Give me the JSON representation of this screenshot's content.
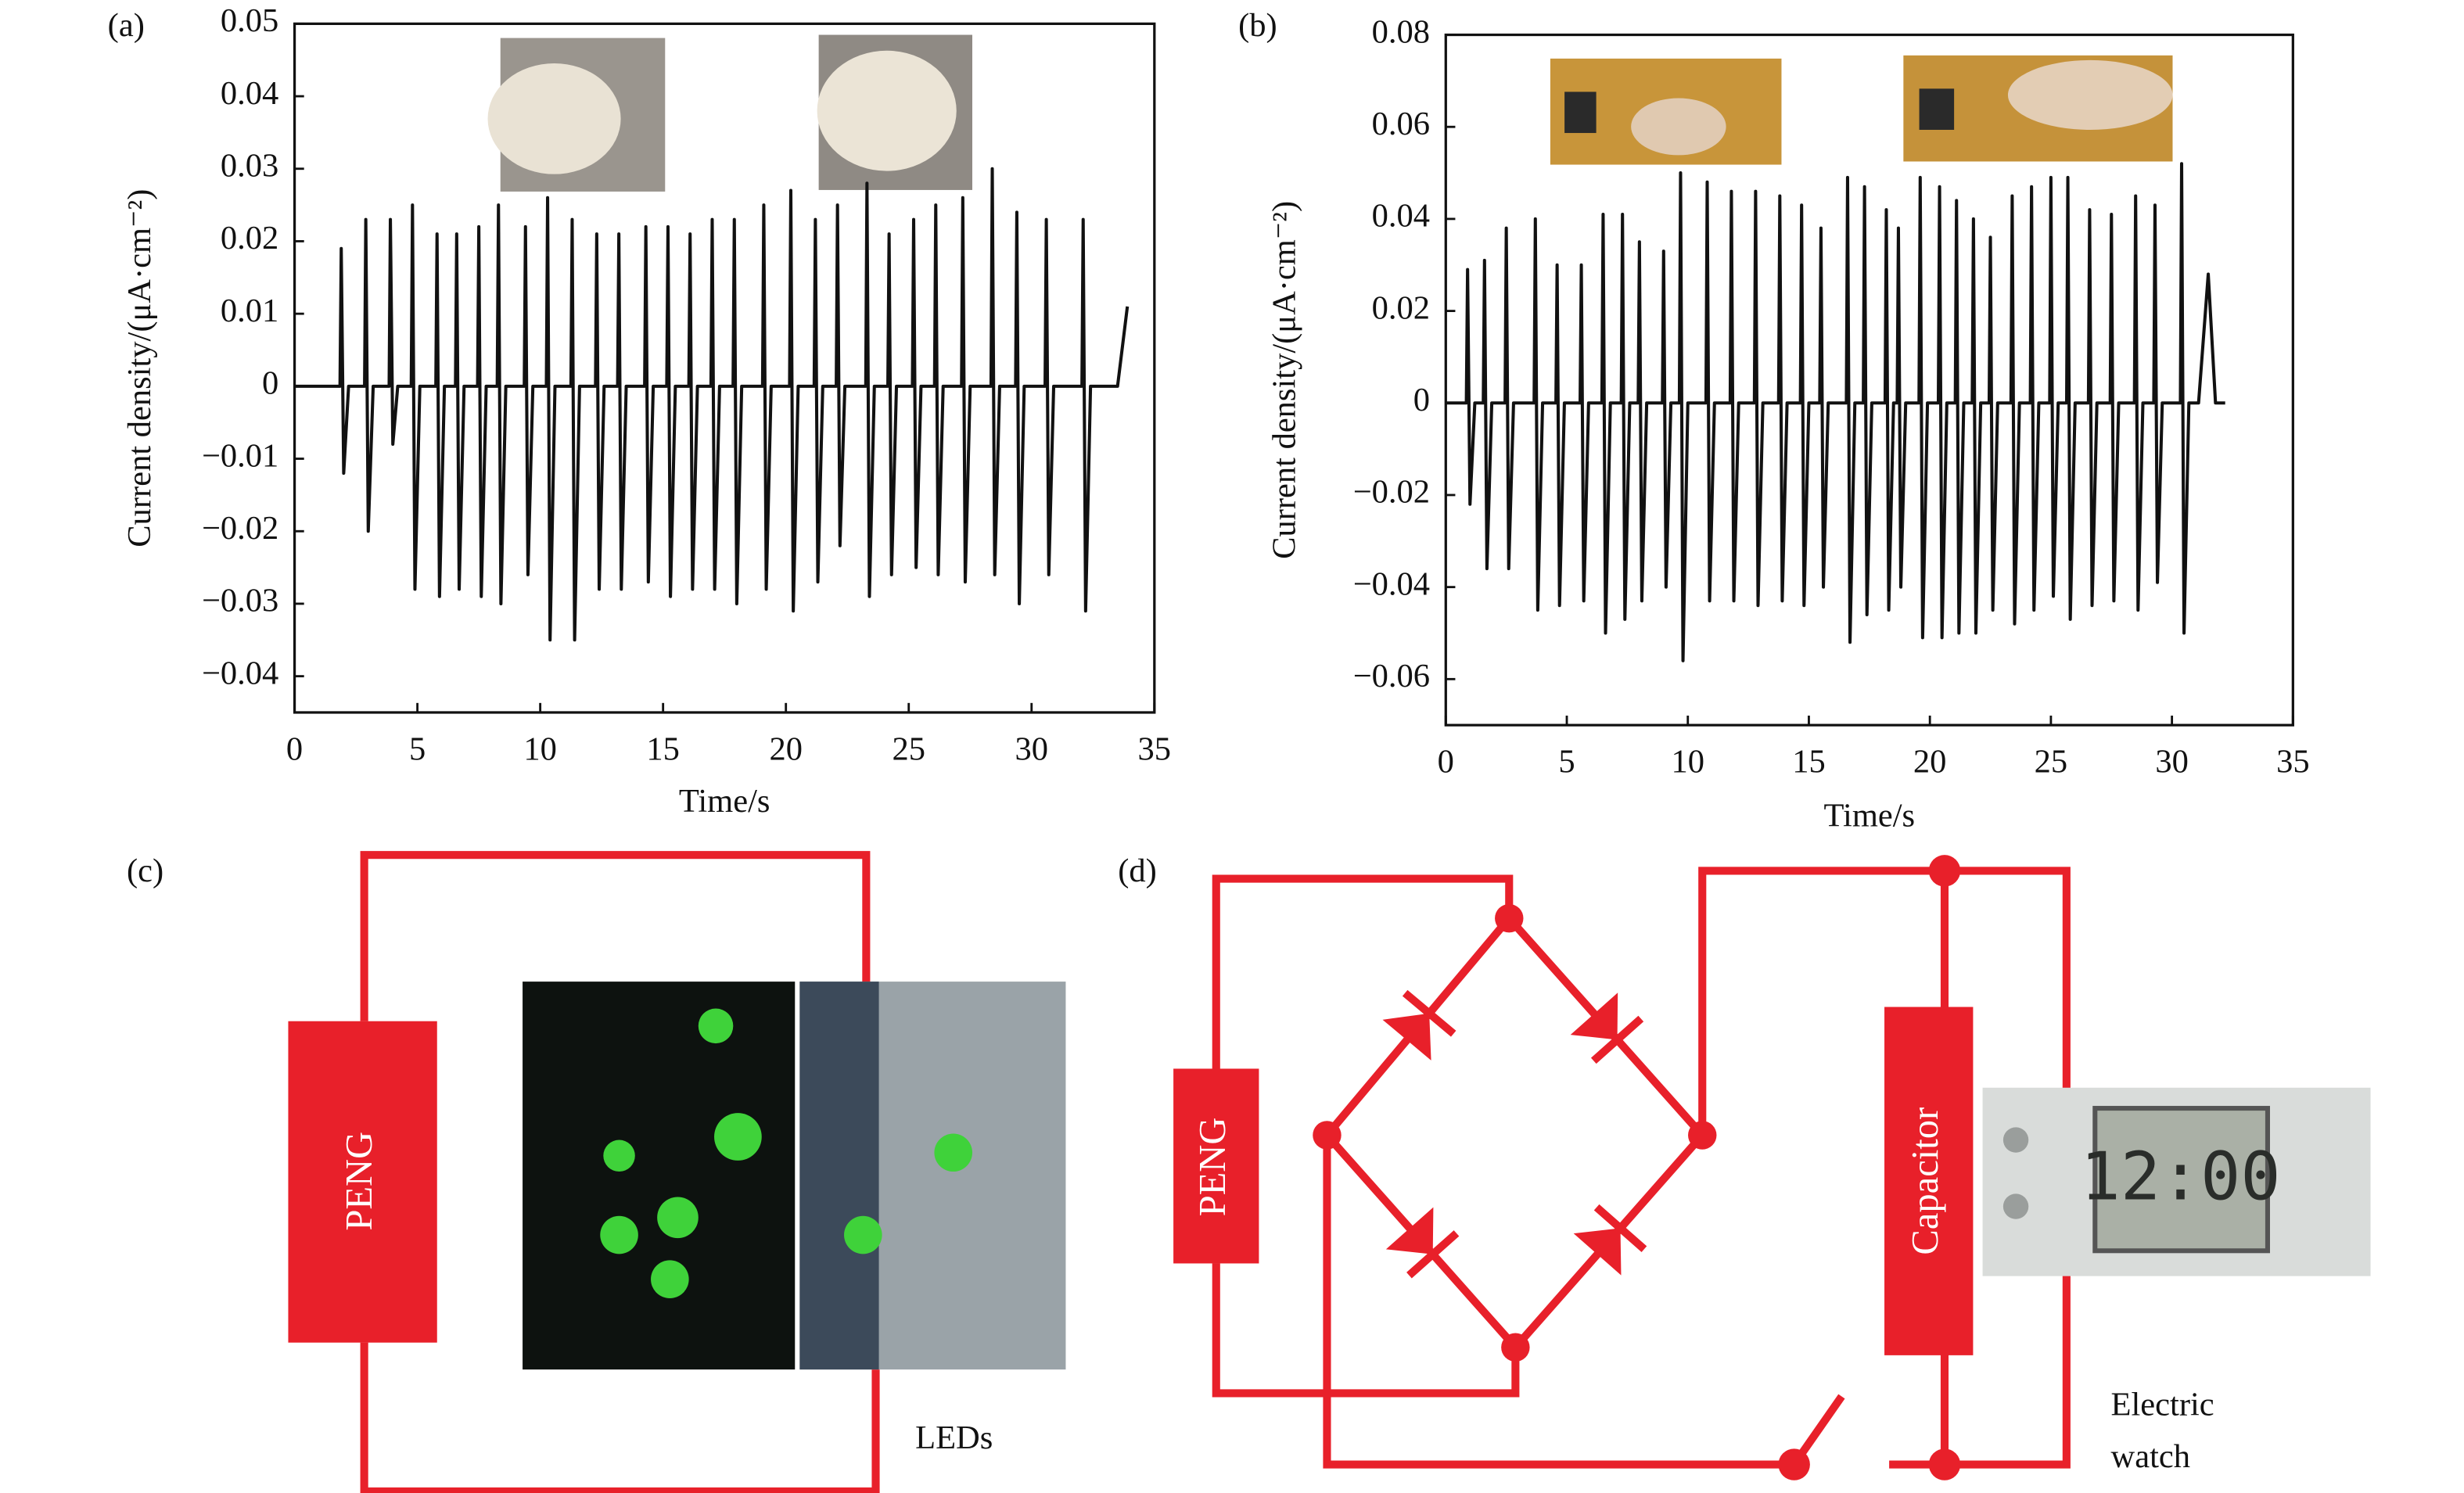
{
  "chart_data": [
    {
      "type": "line",
      "panel_label": "(a)",
      "xlabel": "Time/s",
      "ylabel": "Current density/(μA·cm⁻²)",
      "color": "#111111",
      "xlim": [
        0,
        35
      ],
      "xticks": [
        0,
        5,
        10,
        15,
        20,
        25,
        30,
        35
      ],
      "ylim": [
        -0.045,
        0.05
      ],
      "yticks": [
        0.05,
        0.04,
        0.03,
        0.02,
        0.01,
        0,
        {
          "value": -0.01,
          "label": "−0.01"
        },
        {
          "value": -0.02,
          "label": "−0.02"
        },
        {
          "value": -0.03,
          "label": "−0.03"
        },
        {
          "value": -0.04,
          "label": "−0.04"
        }
      ],
      "x": [
        0,
        1.85,
        1.9,
        2.0,
        2.2,
        2.85,
        2.9,
        3.0,
        3.2,
        3.85,
        3.9,
        4.0,
        4.2,
        4.75,
        4.8,
        4.9,
        5.1,
        5.75,
        5.8,
        5.9,
        6.1,
        6.55,
        6.6,
        6.7,
        6.9,
        7.45,
        7.5,
        7.6,
        7.8,
        8.25,
        8.3,
        8.4,
        8.6,
        9.35,
        9.4,
        9.5,
        9.7,
        10.25,
        10.3,
        10.4,
        10.6,
        11.25,
        11.3,
        11.4,
        11.6,
        12.25,
        12.3,
        12.4,
        12.6,
        13.15,
        13.2,
        13.3,
        13.5,
        14.25,
        14.3,
        14.4,
        14.6,
        15.15,
        15.2,
        15.3,
        15.5,
        16.05,
        16.1,
        16.2,
        16.4,
        16.95,
        17.0,
        17.1,
        17.3,
        17.85,
        17.9,
        18.0,
        18.2,
        19.05,
        19.1,
        19.2,
        19.4,
        20.15,
        20.2,
        20.3,
        20.5,
        21.15,
        21.2,
        21.3,
        21.5,
        22.05,
        22.1,
        22.2,
        22.4,
        23.25,
        23.3,
        23.4,
        23.6,
        24.15,
        24.2,
        24.3,
        24.5,
        25.15,
        25.2,
        25.3,
        25.5,
        26.05,
        26.1,
        26.2,
        26.4,
        27.15,
        27.2,
        27.3,
        27.5,
        28.35,
        28.4,
        28.5,
        28.7,
        29.35,
        29.4,
        29.5,
        29.7,
        30.55,
        30.6,
        30.7,
        30.9,
        32.05,
        32.1,
        32.2,
        32.4,
        33.5,
        33.9
      ],
      "values": [
        0,
        0,
        0.019,
        -0.012,
        0,
        0,
        0.023,
        -0.02,
        0,
        0,
        0.023,
        -0.008,
        0,
        0,
        0.025,
        -0.028,
        0,
        0,
        0.021,
        -0.029,
        0,
        0,
        0.021,
        -0.028,
        0,
        0,
        0.022,
        -0.029,
        0,
        0,
        0.025,
        -0.03,
        0,
        0,
        0.022,
        -0.026,
        0,
        0,
        0.026,
        -0.035,
        0,
        0,
        0.023,
        -0.035,
        0,
        0,
        0.021,
        -0.028,
        0,
        0,
        0.021,
        -0.028,
        0,
        0,
        0.022,
        -0.027,
        0,
        0,
        0.022,
        -0.029,
        0,
        0,
        0.021,
        -0.028,
        0,
        0,
        0.023,
        -0.028,
        0,
        0,
        0.023,
        -0.03,
        0,
        0,
        0.025,
        -0.028,
        0,
        0,
        0.027,
        -0.031,
        0,
        0,
        0.023,
        -0.027,
        0,
        0,
        0.025,
        -0.022,
        0,
        0,
        0.028,
        -0.029,
        0,
        0,
        0.021,
        -0.026,
        0,
        0,
        0.023,
        -0.025,
        0,
        0,
        0.025,
        -0.026,
        0,
        0,
        0.026,
        -0.027,
        0,
        0,
        0.03,
        -0.026,
        0,
        0,
        0.024,
        -0.03,
        0,
        0,
        0.023,
        -0.026,
        0,
        0,
        0.023,
        -0.031,
        0,
        0,
        0.011
      ]
    },
    {
      "type": "line",
      "panel_label": "(b)",
      "xlabel": "Time/s",
      "ylabel": "Current density/(μA·cm⁻²)",
      "color": "#111111",
      "xlim": [
        0,
        35
      ],
      "xticks": [
        0,
        5,
        10,
        15,
        20,
        25,
        30,
        35
      ],
      "ylim": [
        -0.07,
        0.08
      ],
      "yticks": [
        0.08,
        0.06,
        0.04,
        0.02,
        0,
        {
          "value": -0.02,
          "label": "−0.02"
        },
        {
          "value": -0.04,
          "label": "−0.04"
        },
        {
          "value": -0.06,
          "label": "−0.06"
        }
      ],
      "x": [
        0,
        0.85,
        0.9,
        1.0,
        1.2,
        1.55,
        1.6,
        1.7,
        1.9,
        2.45,
        2.5,
        2.6,
        2.8,
        3.65,
        3.7,
        3.8,
        4.0,
        4.55,
        4.6,
        4.7,
        4.9,
        5.55,
        5.6,
        5.7,
        5.9,
        6.45,
        6.5,
        6.6,
        6.8,
        7.25,
        7.3,
        7.4,
        7.6,
        7.95,
        8.0,
        8.1,
        8.3,
        8.95,
        9.0,
        9.1,
        9.3,
        9.65,
        9.7,
        9.8,
        10.0,
        10.75,
        10.8,
        10.9,
        11.1,
        11.75,
        11.8,
        11.9,
        12.1,
        12.75,
        12.8,
        12.9,
        13.1,
        13.75,
        13.8,
        13.9,
        14.1,
        14.65,
        14.7,
        14.8,
        15.0,
        15.45,
        15.5,
        15.6,
        15.8,
        16.55,
        16.6,
        16.7,
        16.9,
        17.25,
        17.3,
        17.4,
        17.6,
        18.15,
        18.2,
        18.3,
        18.5,
        18.65,
        18.7,
        18.8,
        19.0,
        19.55,
        19.6,
        19.7,
        19.9,
        20.35,
        20.4,
        20.5,
        20.7,
        21.05,
        21.1,
        21.2,
        21.4,
        21.75,
        21.8,
        21.9,
        22.1,
        22.45,
        22.5,
        22.6,
        22.8,
        23.35,
        23.4,
        23.5,
        23.7,
        24.15,
        24.2,
        24.3,
        24.5,
        24.95,
        25.0,
        25.1,
        25.3,
        25.65,
        25.7,
        25.8,
        26.0,
        26.55,
        26.6,
        26.7,
        26.9,
        27.45,
        27.5,
        27.6,
        27.8,
        28.45,
        28.5,
        28.6,
        28.8,
        29.25,
        29.3,
        29.4,
        29.6,
        30.35,
        30.4,
        30.5,
        30.7,
        31.1,
        31.5,
        31.8,
        32.2
      ],
      "values": [
        0,
        0,
        0.029,
        -0.022,
        0,
        0,
        0.031,
        -0.036,
        0,
        0,
        0.038,
        -0.036,
        0,
        0,
        0.04,
        -0.045,
        0,
        0,
        0.03,
        -0.044,
        0,
        0,
        0.03,
        -0.043,
        0,
        0,
        0.041,
        -0.05,
        0,
        0,
        0.041,
        -0.047,
        0,
        0,
        0.035,
        -0.043,
        0,
        0,
        0.033,
        -0.04,
        0,
        0,
        0.05,
        -0.056,
        0,
        0,
        0.048,
        -0.043,
        0,
        0,
        0.046,
        -0.043,
        0,
        0,
        0.046,
        -0.044,
        0,
        0,
        0.045,
        -0.043,
        0,
        0,
        0.043,
        -0.044,
        0,
        0,
        0.038,
        -0.04,
        0,
        0,
        0.049,
        -0.052,
        0,
        0,
        0.047,
        -0.046,
        0,
        0,
        0.042,
        -0.045,
        0,
        0,
        0.038,
        -0.04,
        0,
        0,
        0.049,
        -0.051,
        0,
        0,
        0.047,
        -0.051,
        0,
        0,
        0.044,
        -0.05,
        0,
        0,
        0.04,
        -0.05,
        0,
        0,
        0.036,
        -0.045,
        0,
        0,
        0.045,
        -0.048,
        0,
        0,
        0.047,
        -0.045,
        0,
        0,
        0.049,
        -0.042,
        0,
        0,
        0.049,
        -0.047,
        0,
        0,
        0.042,
        -0.044,
        0,
        0,
        0.041,
        -0.043,
        0,
        0,
        0.045,
        -0.045,
        0,
        0,
        0.043,
        -0.039,
        0,
        0,
        0.052,
        -0.05,
        0,
        0,
        0.028,
        0,
        0
      ]
    }
  ],
  "diagram_c": {
    "label": "(c)",
    "source": "PENG",
    "load": "LEDs"
  },
  "diagram_d": {
    "label": "(d)",
    "source": "PENG",
    "storage": "Capacitor",
    "display": "12:00",
    "load": [
      "Electric",
      "watch"
    ]
  }
}
